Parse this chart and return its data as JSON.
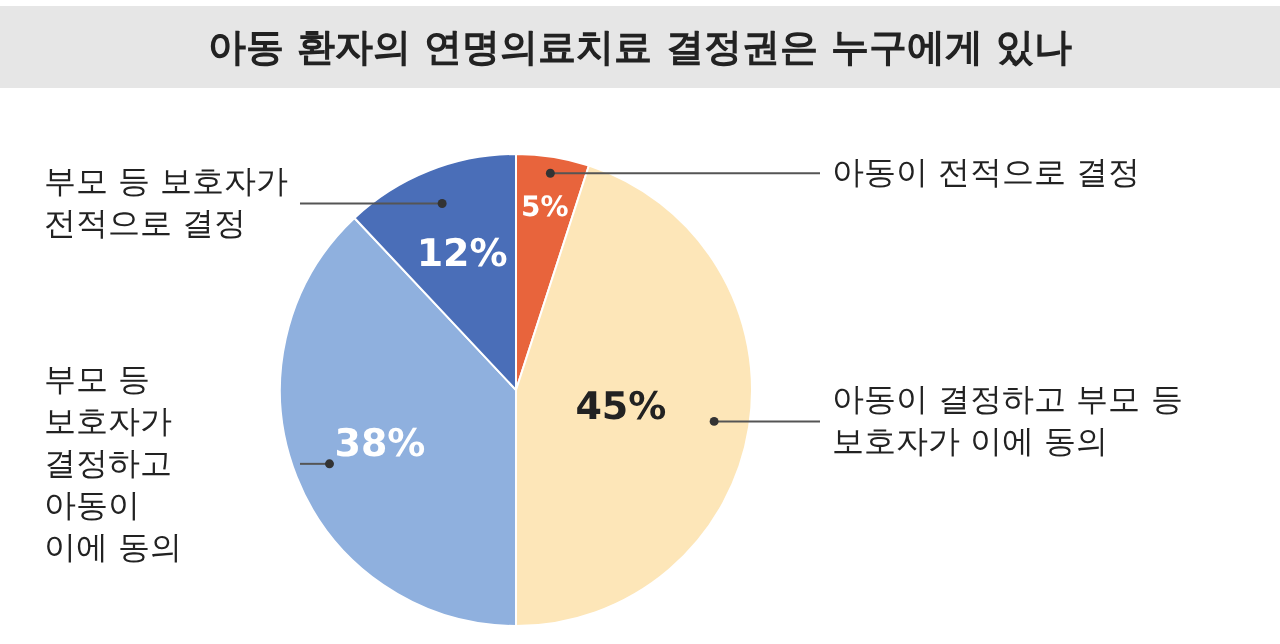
{
  "chart_data": {
    "type": "pie",
    "title": "아동 환자의 연명의료치료 결정권은 누구에게 있나",
    "categories": [
      "아동이 전적으로 결정",
      "아동이 결정하고 부모 등\n보호자가 이에 동의",
      "부모 등\n보호자가\n결정하고\n아동이\n이에 동의",
      "부모 등 보호자가\n전적으로 결정"
    ],
    "values": [
      5,
      45,
      38,
      12
    ],
    "value_labels": [
      "5%",
      "45%",
      "38%",
      "12%"
    ],
    "colors": [
      "#e8643c",
      "#fde6b8",
      "#8fb0de",
      "#4a6eb8"
    ]
  }
}
